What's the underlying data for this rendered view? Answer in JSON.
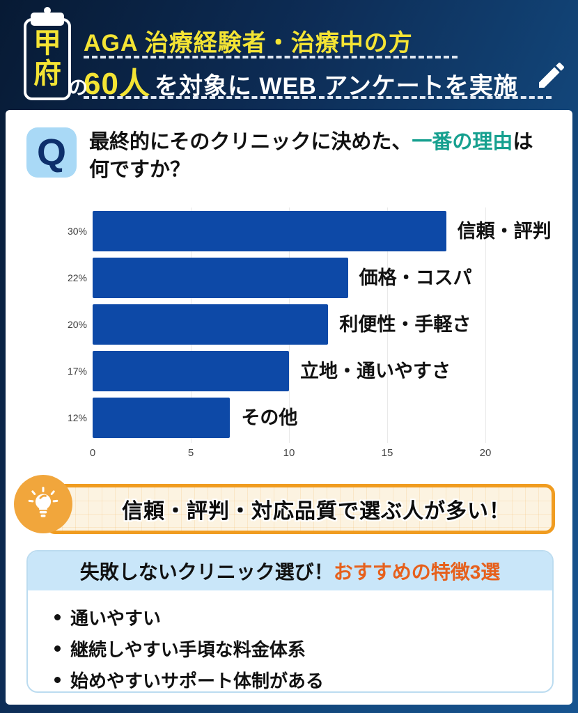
{
  "header": {
    "region": "甲府",
    "particle": "の",
    "line1": "AGA 治療経験者・治療中の方",
    "line2_highlight": "60人",
    "line2_rest": "を対象に WEB アンケートを実施",
    "accent_yellow": "#f4e434",
    "background_navy": "#0d2c55"
  },
  "question": {
    "badge": "Q",
    "line1_pre": "最終的にそのクリニックに決めた、",
    "line1_highlight": "一番の理由",
    "line1_post": "は",
    "line2": "何ですか？",
    "highlight_color": "#16a08f"
  },
  "chart_data": {
    "type": "bar",
    "orientation": "horizontal",
    "categories": [
      "信頼・評判",
      "価格・コスパ",
      "利便性・手軽さ",
      "立地・通いやすさ",
      "その他"
    ],
    "percent_labels": [
      "30%",
      "22%",
      "20%",
      "17%",
      "12%"
    ],
    "values": [
      18,
      13,
      12,
      10,
      7
    ],
    "x_ticks": [
      0,
      5,
      10,
      15,
      20
    ],
    "xlim": [
      0,
      20
    ],
    "bar_color": "#0d49a7",
    "grid": true,
    "legend": false
  },
  "callout": {
    "text": "信頼・評判・対応品質で選ぶ人が多い！",
    "border_color": "#f09c20",
    "bulb_color": "#f1a63c"
  },
  "recommendations": {
    "title_black": "失敗しないクリニック選び！",
    "title_orange": "おすすめの特徴3選",
    "title_orange_color": "#e6601c",
    "items": [
      "通いやすい",
      "継続しやすい手頃な料金体系",
      "始めやすいサポート体制がある"
    ]
  }
}
